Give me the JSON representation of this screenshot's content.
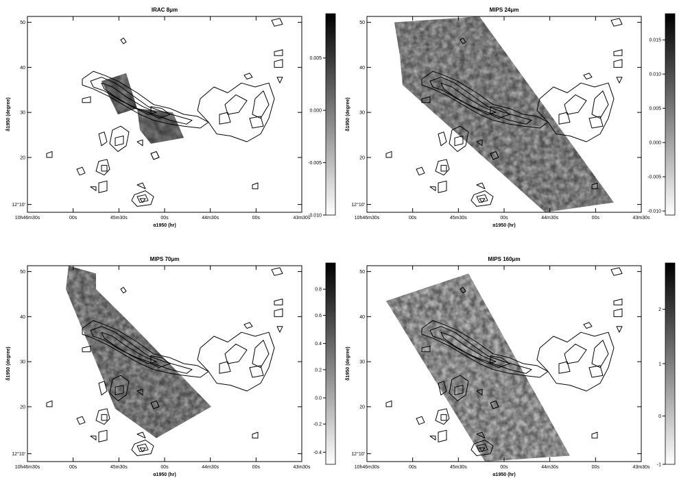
{
  "figure": {
    "panels": [
      {
        "id": "irac8",
        "title": "IRAC 8μm",
        "colorbar": {
          "ticks": [
            "0.005",
            "0.000",
            "-0.005",
            "-0.010"
          ],
          "fracs": [
            0.22,
            0.48,
            0.74,
            1.0
          ]
        }
      },
      {
        "id": "mips24",
        "title": "MIPS 24μm",
        "colorbar": {
          "ticks": [
            "0.015",
            "0.010",
            "0.005",
            "0.000",
            "-0.005",
            "-0.010"
          ],
          "fracs": [
            0.13,
            0.3,
            0.47,
            0.64,
            0.81,
            0.98
          ]
        }
      },
      {
        "id": "mips70",
        "title": "MIPS 70μm",
        "colorbar": {
          "ticks": [
            "0.8",
            "0.6",
            "0.4",
            "0.2",
            "0.0",
            "-0.2",
            "-0.4"
          ],
          "fracs": [
            0.13,
            0.26,
            0.4,
            0.53,
            0.67,
            0.8,
            0.94
          ]
        }
      },
      {
        "id": "mips160",
        "title": "MIPS 160μm",
        "colorbar": {
          "ticks": [
            "2",
            "1",
            "0",
            "-1"
          ],
          "fracs": [
            0.23,
            0.5,
            0.76,
            1.0
          ]
        }
      }
    ],
    "axes": {
      "xlabel": "α1950 (hr)",
      "ylabel": "δ1950 (degree)",
      "xticks": [
        "10h46m30s",
        "00s",
        "45m30s",
        "00s",
        "44m30s",
        "00s",
        "43m30s"
      ],
      "yticks": [
        "50",
        "40",
        "30",
        "20",
        "12°10'"
      ]
    }
  }
}
